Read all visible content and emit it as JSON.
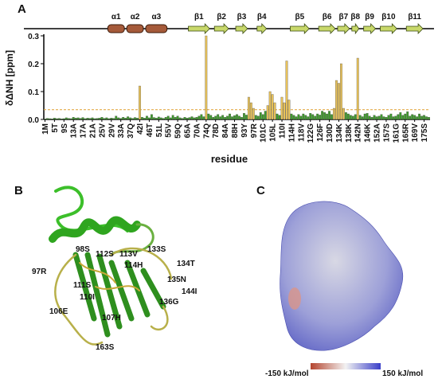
{
  "panels": [
    "A",
    "B",
    "C"
  ],
  "chart_data": {
    "type": "bar",
    "ylabel": "δΔNH [ppm]",
    "xlabel": "residue",
    "categories": [
      "1M",
      null,
      null,
      null,
      "5T",
      null,
      null,
      null,
      "9S",
      null,
      null,
      null,
      "13A",
      null,
      null,
      null,
      "17A",
      null,
      null,
      null,
      "21A",
      null,
      null,
      null,
      "25V",
      null,
      null,
      null,
      "29V",
      null,
      null,
      null,
      "33A",
      null,
      null,
      null,
      "37Q",
      null,
      null,
      null,
      "42I",
      null,
      null,
      null,
      "46T",
      null,
      null,
      null,
      "51L",
      null,
      null,
      null,
      "55V",
      null,
      null,
      null,
      "59Q",
      null,
      null,
      null,
      "65A",
      null,
      null,
      null,
      "70A",
      null,
      null,
      null,
      "74Q",
      null,
      null,
      null,
      "78D",
      null,
      null,
      null,
      "84A",
      null,
      null,
      null,
      "88H",
      null,
      null,
      null,
      "93Y",
      null,
      null,
      null,
      "97R",
      null,
      null,
      null,
      "101C",
      null,
      null,
      null,
      "105L",
      null,
      null,
      null,
      "110I",
      null,
      null,
      null,
      "114H",
      null,
      null,
      null,
      "118V",
      null,
      null,
      null,
      "122G",
      null,
      null,
      null,
      "126F",
      null,
      null,
      null,
      "130D",
      null,
      null,
      null,
      "134K",
      null,
      null,
      null,
      "138K",
      null,
      null,
      null,
      "142N",
      null,
      null,
      null,
      "146K",
      null,
      null,
      null,
      "152A",
      null,
      null,
      null,
      "157S",
      null,
      null,
      null,
      "161G",
      null,
      null,
      null,
      "165R",
      null,
      null,
      null,
      "169V",
      null,
      null,
      null,
      "175S",
      null,
      null
    ],
    "values": [
      0.002,
      0.004,
      0.003,
      0.002,
      0.005,
      0.003,
      0.004,
      0.002,
      0.003,
      0.006,
      0.004,
      0.003,
      0.008,
      0.005,
      0.006,
      0.004,
      0.007,
      0.003,
      0.005,
      0.004,
      0.006,
      0.003,
      0.004,
      0.005,
      0.008,
      0.004,
      0.006,
      0.003,
      0.005,
      0.004,
      0.012,
      0.006,
      0.004,
      0.008,
      0.005,
      0.01,
      0.006,
      0.004,
      0.007,
      0.005,
      0.12,
      0.008,
      0.005,
      0.012,
      0.006,
      0.018,
      0.007,
      0.005,
      0.009,
      0.006,
      0.004,
      0.008,
      0.012,
      0.006,
      0.015,
      0.008,
      0.012,
      0.006,
      0.004,
      0.008,
      0.005,
      0.007,
      0.01,
      0.006,
      0.008,
      0.012,
      0.018,
      0.01,
      0.3,
      0.02,
      0.015,
      0.008,
      0.012,
      0.018,
      0.01,
      0.015,
      0.008,
      0.012,
      0.02,
      0.01,
      0.014,
      0.018,
      0.012,
      0.008,
      0.022,
      0.016,
      0.08,
      0.06,
      0.04,
      0.015,
      0.012,
      0.025,
      0.018,
      0.03,
      0.05,
      0.1,
      0.09,
      0.06,
      0.02,
      0.015,
      0.08,
      0.06,
      0.21,
      0.07,
      0.02,
      0.015,
      0.01,
      0.018,
      0.012,
      0.02,
      0.015,
      0.01,
      0.022,
      0.018,
      0.012,
      0.02,
      0.016,
      0.03,
      0.025,
      0.02,
      0.03,
      0.018,
      0.04,
      0.14,
      0.13,
      0.2,
      0.04,
      0.025,
      0.02,
      0.015,
      0.012,
      0.018,
      0.22,
      0.015,
      0.01,
      0.02,
      0.022,
      0.012,
      0.008,
      0.015,
      0.01,
      0.012,
      0.018,
      0.01,
      0.008,
      0.015,
      0.02,
      0.01,
      0.012,
      0.018,
      0.025,
      0.015,
      0.02,
      0.028,
      0.012,
      0.018,
      0.015,
      0.01,
      0.02,
      0.012,
      0.015,
      0.01,
      0.008
    ],
    "threshold": 0.035,
    "threshold_color": "#e0a030",
    "above_color": "#e8c25a",
    "below_color": "#3f9a2c",
    "ylim": [
      0,
      0.3
    ],
    "yticks": [
      {
        "value": 0,
        "label": "0.0"
      },
      {
        "value": 0.1,
        "label": "0.1"
      },
      {
        "value": 0.2,
        "label": "0.2"
      },
      {
        "value": 0.3,
        "label": "0.3"
      }
    ],
    "secondary_structure": [
      {
        "label": "α1",
        "kind": "helix",
        "start": 27,
        "end": 33
      },
      {
        "label": "α2",
        "kind": "helix",
        "start": 35,
        "end": 41
      },
      {
        "label": "α3",
        "kind": "helix",
        "start": 43,
        "end": 51
      },
      {
        "label": "β1",
        "kind": "strand",
        "start": 61,
        "end": 69
      },
      {
        "label": "β2",
        "kind": "strand",
        "start": 72,
        "end": 77
      },
      {
        "label": "β3",
        "kind": "strand",
        "start": 81,
        "end": 85
      },
      {
        "label": "β4",
        "kind": "strand",
        "start": 90,
        "end": 93
      },
      {
        "label": "β5",
        "kind": "strand",
        "start": 104,
        "end": 111
      },
      {
        "label": "β6",
        "kind": "strand",
        "start": 116,
        "end": 122
      },
      {
        "label": "β7",
        "kind": "strand",
        "start": 124,
        "end": 128
      },
      {
        "label": "β8",
        "kind": "strand",
        "start": 130,
        "end": 132
      },
      {
        "label": "β9",
        "kind": "strand",
        "start": 135,
        "end": 139
      },
      {
        "label": "β10",
        "kind": "strand",
        "start": 142,
        "end": 148
      },
      {
        "label": "β11",
        "kind": "strand",
        "start": 153,
        "end": 159
      }
    ]
  },
  "structure_labels": [
    "98S",
    "112S",
    "113V",
    "133S",
    "114H",
    "134T",
    "97R",
    "135N",
    "111S",
    "144I",
    "110I",
    "136G",
    "106E",
    "107H",
    "163S"
  ],
  "colorbar": {
    "min_label": "-150 kJ/mol",
    "max_label": "150 kJ/mol"
  }
}
